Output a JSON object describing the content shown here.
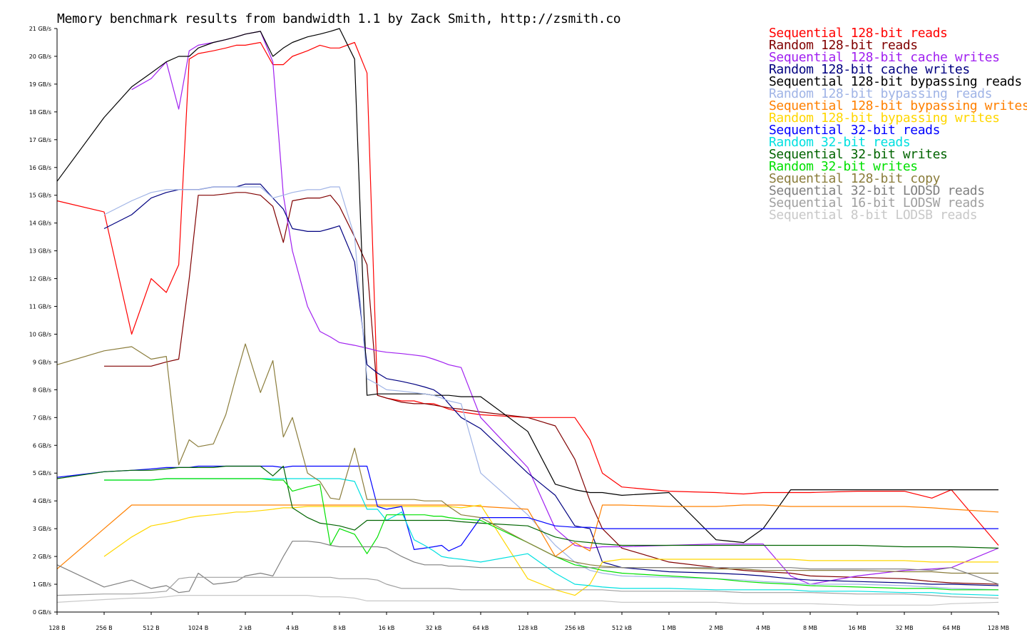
{
  "chart_data": {
    "type": "line",
    "title": "Memory benchmark results from bandwidth 1.1 by Zack Smith, http://zsmith.co",
    "xlabel": "",
    "ylabel": "",
    "x_scale": "log2",
    "x": [
      128,
      256,
      384,
      512,
      640,
      768,
      896,
      1024,
      1280,
      1536,
      1792,
      2048,
      2560,
      3072,
      3584,
      4096,
      5120,
      6144,
      7168,
      8192,
      10240,
      12288,
      14336,
      16384,
      20480,
      24576,
      28672,
      32768,
      36864,
      40960,
      49152,
      65536,
      131072,
      196608,
      262144,
      327680,
      393216,
      524288,
      1048576,
      2097152,
      3145728,
      4194304,
      6291456,
      8388608,
      16777216,
      33554432,
      50331648,
      67108864,
      134217728
    ],
    "categories": [
      "128 B",
      "256 B",
      "512 B",
      "1024 B",
      "2 kB",
      "4 kB",
      "8 kB",
      "16 kB",
      "32 kB",
      "64 kB",
      "128 kB",
      "256 kB",
      "512 kB",
      "1 MB",
      "2 MB",
      "4 MB",
      "8 MB",
      "16 MB",
      "32 MB",
      "64 MB",
      "128 MB"
    ],
    "tick_values": [
      128,
      256,
      512,
      1024,
      2048,
      4096,
      8192,
      16384,
      32768,
      65536,
      131072,
      262144,
      524288,
      1048576,
      2097152,
      4194304,
      8388608,
      16777216,
      33554432,
      67108864,
      134217728
    ],
    "y_unit": "GB/s",
    "y_tick_labels": [
      "0 GB/s",
      "1 GB/s",
      "2 GB/s",
      "3 GB/s",
      "4 GB/s",
      "5 GB/s",
      "6 GB/s",
      "7 GB/s",
      "8 GB/s",
      "9 GB/s",
      "10 GB/s",
      "11 GB/s",
      "12 GB/s",
      "13 GB/s",
      "14 GB/s",
      "15 GB/s",
      "16 GB/s",
      "17 GB/s",
      "18 GB/s",
      "19 GB/s",
      "20 GB/s",
      "21 GB/s"
    ],
    "ylim": [
      0,
      21
    ],
    "grid": false,
    "legend_position": "top-right",
    "series": [
      {
        "name": "Sequential 128-bit reads",
        "color": "#ff0000",
        "values": [
          14.8,
          14.4,
          10.0,
          12.0,
          11.5,
          12.5,
          19.9,
          20.1,
          20.2,
          20.3,
          20.4,
          20.4,
          20.5,
          19.7,
          19.7,
          20.0,
          20.2,
          20.4,
          20.3,
          20.3,
          20.5,
          19.4,
          7.8,
          7.7,
          7.6,
          7.6,
          7.5,
          7.5,
          7.4,
          7.3,
          7.2,
          7.1,
          7.0,
          7.0,
          7.0,
          6.2,
          5.0,
          4.5,
          4.35,
          4.3,
          4.25,
          4.3,
          4.3,
          4.3,
          4.35,
          4.35,
          4.1,
          4.4,
          2.4
        ]
      },
      {
        "name": "Random 128-bit reads",
        "color": "#800000",
        "values": [
          null,
          8.85,
          8.85,
          8.85,
          9.0,
          9.1,
          12.0,
          15.0,
          15.0,
          15.05,
          15.1,
          15.1,
          15.0,
          14.6,
          13.3,
          14.8,
          14.9,
          14.9,
          15.0,
          14.6,
          13.5,
          12.5,
          7.8,
          7.7,
          7.55,
          7.5,
          7.5,
          7.45,
          7.4,
          7.35,
          7.3,
          7.2,
          7.0,
          6.7,
          5.5,
          4.0,
          3.0,
          2.3,
          1.8,
          1.6,
          1.5,
          1.45,
          1.4,
          1.3,
          1.25,
          1.2,
          1.1,
          1.05,
          1.0
        ]
      },
      {
        "name": "Sequential 128-bit cache writes",
        "color": "#a020f0",
        "values": [
          null,
          null,
          18.8,
          19.2,
          19.8,
          18.1,
          20.2,
          20.4,
          20.5,
          20.6,
          20.7,
          20.8,
          20.9,
          19.8,
          15.0,
          13.0,
          11.0,
          10.1,
          9.9,
          9.7,
          9.6,
          9.5,
          9.4,
          9.35,
          9.3,
          9.25,
          9.2,
          9.1,
          9.0,
          8.9,
          8.8,
          7.0,
          5.2,
          3.0,
          2.4,
          2.3,
          2.35,
          2.35,
          2.4,
          2.45,
          2.45,
          2.45,
          1.3,
          1.0,
          1.3,
          1.5,
          1.55,
          1.6,
          2.3
        ]
      },
      {
        "name": "Random 128-bit cache writes",
        "color": "#000080",
        "values": [
          null,
          13.8,
          14.3,
          14.9,
          15.1,
          15.2,
          15.2,
          15.2,
          15.3,
          15.3,
          15.3,
          15.4,
          15.4,
          14.9,
          14.5,
          13.8,
          13.7,
          13.7,
          13.8,
          13.9,
          12.6,
          8.9,
          8.6,
          8.4,
          8.3,
          8.2,
          8.1,
          8.0,
          7.8,
          7.5,
          7.0,
          6.6,
          5.0,
          4.2,
          3.1,
          3.0,
          1.8,
          1.6,
          1.45,
          1.4,
          1.35,
          1.3,
          1.2,
          1.15,
          1.1,
          1.05,
          1.0,
          1.0,
          0.95
        ]
      },
      {
        "name": "Sequential 128-bit bypassing reads",
        "color": "#000000",
        "values": [
          15.5,
          17.8,
          18.9,
          19.4,
          19.8,
          20.0,
          20.0,
          20.3,
          20.5,
          20.6,
          20.7,
          20.8,
          20.9,
          20.0,
          20.3,
          20.5,
          20.7,
          20.8,
          20.9,
          21.0,
          19.9,
          7.8,
          7.85,
          7.85,
          7.85,
          7.85,
          7.85,
          7.8,
          7.8,
          7.8,
          7.75,
          7.75,
          6.5,
          4.6,
          4.4,
          4.3,
          4.3,
          4.2,
          4.3,
          2.6,
          2.5,
          3.0,
          4.4,
          4.4,
          4.4,
          4.4,
          4.4,
          4.4,
          4.4
        ]
      },
      {
        "name": "Random 128-bit bypassing reads",
        "color": "#a0b4e6",
        "values": [
          null,
          14.3,
          14.8,
          15.1,
          15.2,
          15.2,
          15.2,
          15.2,
          15.3,
          15.3,
          15.3,
          15.3,
          15.3,
          14.9,
          15.0,
          15.1,
          15.2,
          15.2,
          15.3,
          15.3,
          13.5,
          8.4,
          8.2,
          8.0,
          7.95,
          7.9,
          7.85,
          7.8,
          7.7,
          7.6,
          7.5,
          5.0,
          3.5,
          2.4,
          1.8,
          1.5,
          1.4,
          1.3,
          1.25,
          1.2,
          1.15,
          1.1,
          1.05,
          1.0,
          1.0,
          0.95,
          0.9,
          0.85,
          0.8
        ]
      },
      {
        "name": "Sequential 128-bit bypassing writes",
        "color": "#ff8000",
        "values": [
          1.55,
          3.0,
          3.85,
          3.85,
          3.85,
          3.85,
          3.85,
          3.85,
          3.85,
          3.85,
          3.85,
          3.85,
          3.85,
          3.85,
          3.85,
          3.85,
          3.85,
          3.85,
          3.85,
          3.85,
          3.85,
          3.85,
          3.85,
          3.85,
          3.85,
          3.85,
          3.85,
          3.85,
          3.85,
          3.85,
          3.85,
          3.8,
          3.7,
          2.0,
          2.5,
          2.2,
          3.85,
          3.85,
          3.8,
          3.8,
          3.85,
          3.85,
          3.8,
          3.8,
          3.8,
          3.8,
          3.75,
          3.7,
          3.6
        ]
      },
      {
        "name": "Random 128-bit bypassing writes",
        "color": "#ffd700",
        "values": [
          null,
          2.0,
          2.7,
          3.1,
          3.2,
          3.3,
          3.4,
          3.45,
          3.5,
          3.55,
          3.6,
          3.6,
          3.65,
          3.7,
          3.75,
          3.75,
          3.8,
          3.8,
          3.8,
          3.8,
          3.8,
          3.8,
          3.8,
          3.8,
          3.8,
          3.8,
          3.8,
          3.8,
          3.8,
          3.8,
          3.75,
          3.85,
          1.2,
          0.8,
          0.6,
          1.0,
          1.8,
          1.9,
          1.9,
          1.9,
          1.9,
          1.9,
          1.9,
          1.85,
          1.85,
          1.85,
          1.8,
          1.8,
          1.8
        ]
      },
      {
        "name": "Sequential 32-bit reads",
        "color": "#0000ff",
        "values": [
          4.85,
          5.05,
          5.1,
          5.15,
          5.2,
          5.2,
          5.2,
          5.25,
          5.25,
          5.25,
          5.25,
          5.25,
          5.25,
          5.25,
          5.2,
          5.25,
          5.25,
          5.25,
          5.25,
          5.25,
          5.25,
          5.25,
          3.8,
          3.7,
          3.8,
          2.25,
          2.3,
          2.35,
          2.4,
          2.2,
          2.4,
          3.4,
          3.4,
          3.1,
          3.05,
          3.05,
          3.0,
          3.0,
          3.0,
          3.0,
          3.0,
          3.0,
          3.0,
          3.0,
          3.0,
          3.0,
          3.0,
          3.0,
          3.0
        ]
      },
      {
        "name": "Random 32-bit reads",
        "color": "#00e0e0",
        "values": [
          null,
          4.75,
          4.75,
          4.75,
          4.8,
          4.8,
          4.8,
          4.8,
          4.8,
          4.8,
          4.8,
          4.8,
          4.8,
          4.8,
          4.8,
          4.8,
          4.8,
          4.8,
          4.8,
          4.8,
          4.7,
          3.7,
          3.7,
          3.3,
          3.6,
          2.6,
          2.4,
          2.2,
          2.0,
          1.95,
          1.9,
          1.8,
          2.1,
          1.4,
          1.0,
          0.95,
          0.9,
          0.85,
          0.85,
          0.8,
          0.8,
          0.8,
          0.8,
          0.75,
          0.75,
          0.7,
          0.7,
          0.65,
          0.6
        ]
      },
      {
        "name": "Sequential 32-bit writes",
        "color": "#006400",
        "values": [
          4.8,
          5.05,
          5.1,
          5.1,
          5.15,
          5.2,
          5.2,
          5.2,
          5.2,
          5.25,
          5.25,
          5.25,
          5.25,
          4.9,
          5.25,
          3.75,
          3.4,
          3.2,
          3.15,
          3.1,
          2.95,
          3.3,
          3.3,
          3.3,
          3.3,
          3.3,
          3.3,
          3.3,
          3.3,
          3.3,
          3.25,
          3.2,
          3.1,
          2.7,
          2.55,
          2.5,
          2.45,
          2.4,
          2.4,
          2.4,
          2.4,
          2.4,
          2.4,
          2.4,
          2.4,
          2.35,
          2.35,
          2.35,
          2.3
        ]
      },
      {
        "name": "Random 32-bit writes",
        "color": "#00e000",
        "values": [
          null,
          4.75,
          4.75,
          4.75,
          4.8,
          4.8,
          4.8,
          4.8,
          4.8,
          4.8,
          4.8,
          4.8,
          4.8,
          4.75,
          4.75,
          4.35,
          4.5,
          4.6,
          2.4,
          3.0,
          2.8,
          2.1,
          2.7,
          3.5,
          3.5,
          3.5,
          3.5,
          3.45,
          3.45,
          3.4,
          3.35,
          3.3,
          2.5,
          2.0,
          1.7,
          1.6,
          1.5,
          1.4,
          1.3,
          1.2,
          1.1,
          1.05,
          1.0,
          0.95,
          0.9,
          0.85,
          0.85,
          0.8,
          0.8
        ]
      },
      {
        "name": "Sequential 128-bit copy",
        "color": "#8b7d3c",
        "values": [
          8.9,
          9.4,
          9.55,
          9.1,
          9.2,
          5.3,
          6.2,
          5.95,
          6.05,
          7.1,
          8.5,
          9.65,
          7.9,
          9.05,
          6.3,
          7.0,
          5.0,
          4.7,
          4.1,
          4.05,
          5.9,
          4.05,
          4.05,
          4.05,
          4.05,
          4.05,
          4.0,
          4.0,
          4.0,
          3.8,
          3.5,
          3.4,
          2.5,
          2.0,
          1.8,
          1.7,
          1.65,
          1.6,
          1.6,
          1.55,
          1.55,
          1.5,
          1.5,
          1.5,
          1.5,
          1.45,
          1.45,
          1.4,
          1.4
        ]
      },
      {
        "name": "Sequential 32-bit LODSD reads",
        "color": "#808080",
        "values": [
          1.7,
          0.9,
          1.15,
          0.85,
          0.95,
          0.7,
          0.75,
          1.4,
          1.0,
          1.05,
          1.1,
          1.3,
          1.4,
          1.3,
          2.0,
          2.55,
          2.55,
          2.5,
          2.4,
          2.35,
          2.35,
          2.35,
          2.35,
          2.3,
          2.0,
          1.8,
          1.7,
          1.7,
          1.7,
          1.65,
          1.65,
          1.6,
          1.6,
          1.6,
          1.6,
          1.6,
          1.6,
          1.6,
          1.6,
          1.6,
          1.6,
          1.6,
          1.6,
          1.55,
          1.55,
          1.55,
          1.5,
          1.6,
          1.0
        ]
      },
      {
        "name": "Sequential 16-bit LODSW reads",
        "color": "#a0a0a0",
        "values": [
          0.6,
          0.65,
          0.65,
          0.7,
          0.75,
          1.2,
          1.25,
          1.25,
          1.25,
          1.25,
          1.25,
          1.25,
          1.25,
          1.25,
          1.25,
          1.25,
          1.25,
          1.25,
          1.25,
          1.2,
          1.2,
          1.2,
          1.15,
          1.0,
          0.85,
          0.85,
          0.85,
          0.85,
          0.85,
          0.85,
          0.8,
          0.8,
          0.8,
          0.8,
          0.8,
          0.8,
          0.8,
          0.75,
          0.75,
          0.75,
          0.7,
          0.7,
          0.7,
          0.7,
          0.65,
          0.65,
          0.6,
          0.55,
          0.5
        ]
      },
      {
        "name": "Sequential 8-bit LODSB reads",
        "color": "#c8c8c8",
        "values": [
          0.35,
          0.45,
          0.5,
          0.5,
          0.55,
          0.6,
          0.6,
          0.6,
          0.6,
          0.6,
          0.6,
          0.6,
          0.6,
          0.6,
          0.6,
          0.6,
          0.6,
          0.55,
          0.55,
          0.55,
          0.5,
          0.4,
          0.4,
          0.4,
          0.4,
          0.4,
          0.4,
          0.4,
          0.4,
          0.4,
          0.4,
          0.4,
          0.4,
          0.4,
          0.4,
          0.4,
          0.4,
          0.35,
          0.35,
          0.35,
          0.3,
          0.3,
          0.3,
          0.3,
          0.25,
          0.25,
          0.25,
          0.3,
          0.35
        ]
      }
    ]
  }
}
